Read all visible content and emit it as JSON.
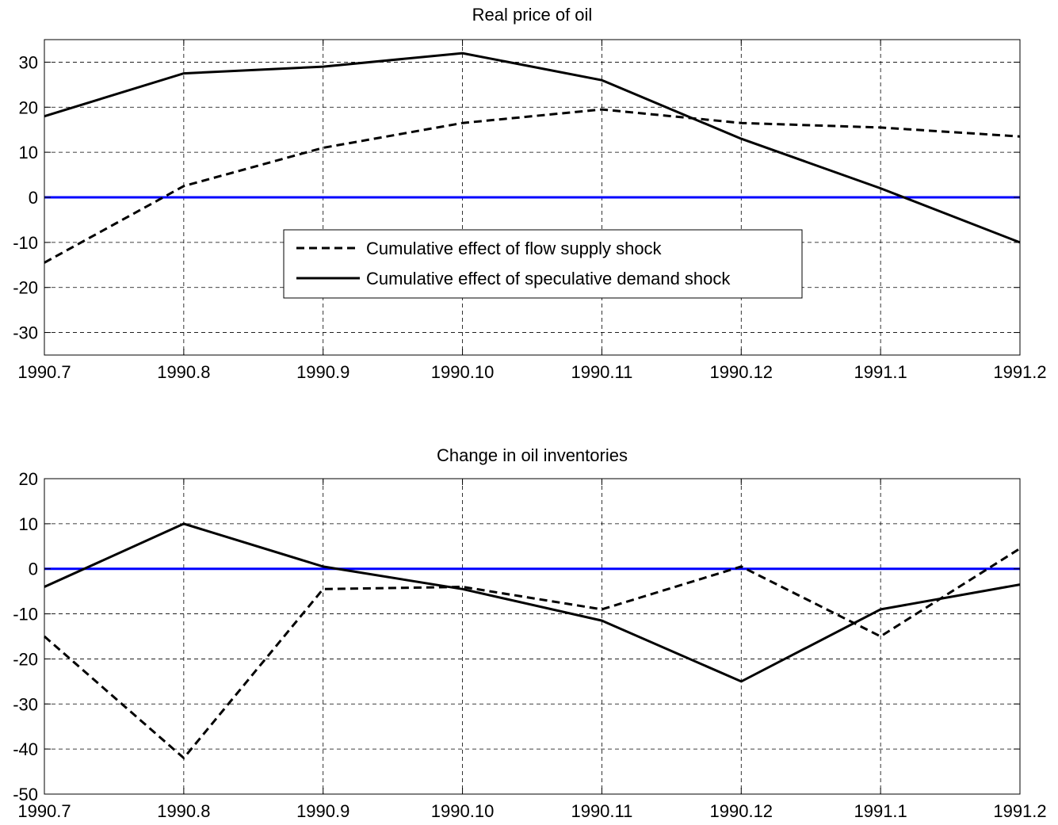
{
  "chart_data": [
    {
      "type": "line",
      "title": "Real price of oil",
      "xlabel": "",
      "ylabel": "",
      "categories": [
        "1990.7",
        "1990.8",
        "1990.9",
        "1990.10",
        "1990.11",
        "1990.12",
        "1991.1",
        "1991.2"
      ],
      "ylim": [
        -35,
        35
      ],
      "yticks": [
        -30,
        -20,
        -10,
        0,
        10,
        20,
        30
      ],
      "grid": true,
      "legend_position": "center",
      "zero_line_color": "#0000ff",
      "series": [
        {
          "name": "Cumulative effect of flow supply shock",
          "style": "dashed",
          "color": "#000000",
          "values": [
            -14.5,
            2.5,
            11,
            16.5,
            19.5,
            16.5,
            15.5,
            13.5
          ]
        },
        {
          "name": "Cumulative effect of speculative demand shock",
          "style": "solid",
          "color": "#000000",
          "values": [
            18,
            27.5,
            29,
            32,
            26,
            13,
            2,
            -10
          ]
        }
      ]
    },
    {
      "type": "line",
      "title": "Change in oil inventories",
      "xlabel": "",
      "ylabel": "",
      "categories": [
        "1990.7",
        "1990.8",
        "1990.9",
        "1990.10",
        "1990.11",
        "1990.12",
        "1991.1",
        "1991.2"
      ],
      "ylim": [
        -50,
        20
      ],
      "yticks": [
        -50,
        -40,
        -30,
        -20,
        -10,
        0,
        10,
        20
      ],
      "grid": true,
      "zero_line_color": "#0000ff",
      "series": [
        {
          "style": "dashed",
          "color": "#000000",
          "values": [
            -15,
            -42,
            -4.5,
            -4,
            -9,
            0.5,
            -15,
            4.5
          ]
        },
        {
          "style": "solid",
          "color": "#000000",
          "values": [
            -4,
            10,
            0.5,
            -4.5,
            -11.5,
            -25,
            -9,
            -3.5
          ]
        }
      ]
    }
  ]
}
